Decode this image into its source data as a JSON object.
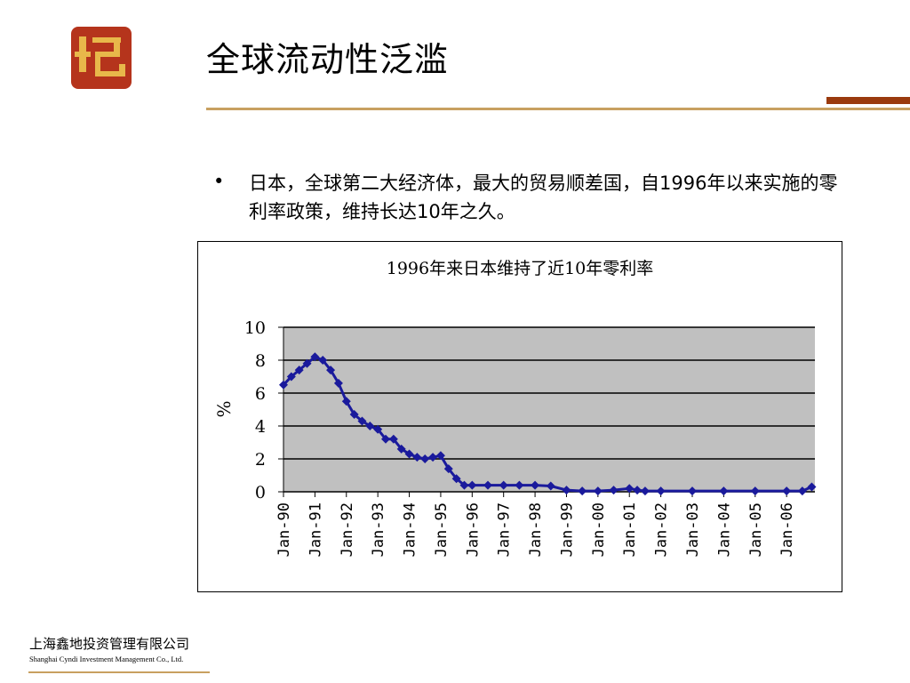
{
  "slide": {
    "title": "全球流动性泛滥",
    "bullet_symbol": "•",
    "bullet_text": "日本，全球第二大经济体，最大的贸易顺差国，自1996年以来实施的零利率政策，维持长达10年之久。"
  },
  "footer": {
    "company_cn": "上海鑫地投资管理有限公司",
    "company_en": "Shanghai Cyndi Investment Management Co., Ltd."
  },
  "colors": {
    "series": "#1a1a9c",
    "plot_bg": "#c0c0c0",
    "logo_red": "#b5341c",
    "logo_gold": "#e8b84a",
    "accent_rule": "#9a3a0e"
  },
  "chart_data": {
    "type": "line",
    "title": "1996年来日本维持了近10年零利率",
    "ylabel": "%",
    "xlabel": "",
    "ylim": [
      0,
      10
    ],
    "yticks": [
      0,
      2,
      4,
      6,
      8,
      10
    ],
    "grid": true,
    "legend": "none",
    "x_tick_labels": [
      "Jan-90",
      "Jan-91",
      "Jan-92",
      "Jan-93",
      "Jan-94",
      "Jan-95",
      "Jan-96",
      "Jan-97",
      "Jan-98",
      "Jan-99",
      "Jan-00",
      "Jan-01",
      "Jan-02",
      "Jan-03",
      "Jan-04",
      "Jan-05",
      "Jan-06"
    ],
    "x_range_years": [
      1990,
      2006.9
    ],
    "series": [
      {
        "marker": "diamond",
        "points": [
          [
            1990.0,
            6.5
          ],
          [
            1990.25,
            7.0
          ],
          [
            1990.5,
            7.4
          ],
          [
            1990.75,
            7.8
          ],
          [
            1991.0,
            8.2
          ],
          [
            1991.25,
            8.0
          ],
          [
            1991.5,
            7.4
          ],
          [
            1991.75,
            6.6
          ],
          [
            1992.0,
            5.5
          ],
          [
            1992.25,
            4.7
          ],
          [
            1992.5,
            4.3
          ],
          [
            1992.75,
            4.0
          ],
          [
            1993.0,
            3.8
          ],
          [
            1993.25,
            3.2
          ],
          [
            1993.5,
            3.2
          ],
          [
            1993.75,
            2.6
          ],
          [
            1994.0,
            2.3
          ],
          [
            1994.25,
            2.1
          ],
          [
            1994.5,
            2.0
          ],
          [
            1994.75,
            2.1
          ],
          [
            1995.0,
            2.2
          ],
          [
            1995.25,
            1.4
          ],
          [
            1995.5,
            0.8
          ],
          [
            1995.75,
            0.4
          ],
          [
            1996.0,
            0.4
          ],
          [
            1996.5,
            0.4
          ],
          [
            1997.0,
            0.4
          ],
          [
            1997.5,
            0.4
          ],
          [
            1998.0,
            0.4
          ],
          [
            1998.5,
            0.35
          ],
          [
            1999.0,
            0.1
          ],
          [
            1999.5,
            0.05
          ],
          [
            2000.0,
            0.05
          ],
          [
            2000.5,
            0.1
          ],
          [
            2001.0,
            0.2
          ],
          [
            2001.25,
            0.1
          ],
          [
            2001.5,
            0.05
          ],
          [
            2002.0,
            0.05
          ],
          [
            2003.0,
            0.05
          ],
          [
            2004.0,
            0.05
          ],
          [
            2005.0,
            0.05
          ],
          [
            2006.0,
            0.05
          ],
          [
            2006.5,
            0.05
          ],
          [
            2006.8,
            0.3
          ]
        ]
      }
    ]
  }
}
